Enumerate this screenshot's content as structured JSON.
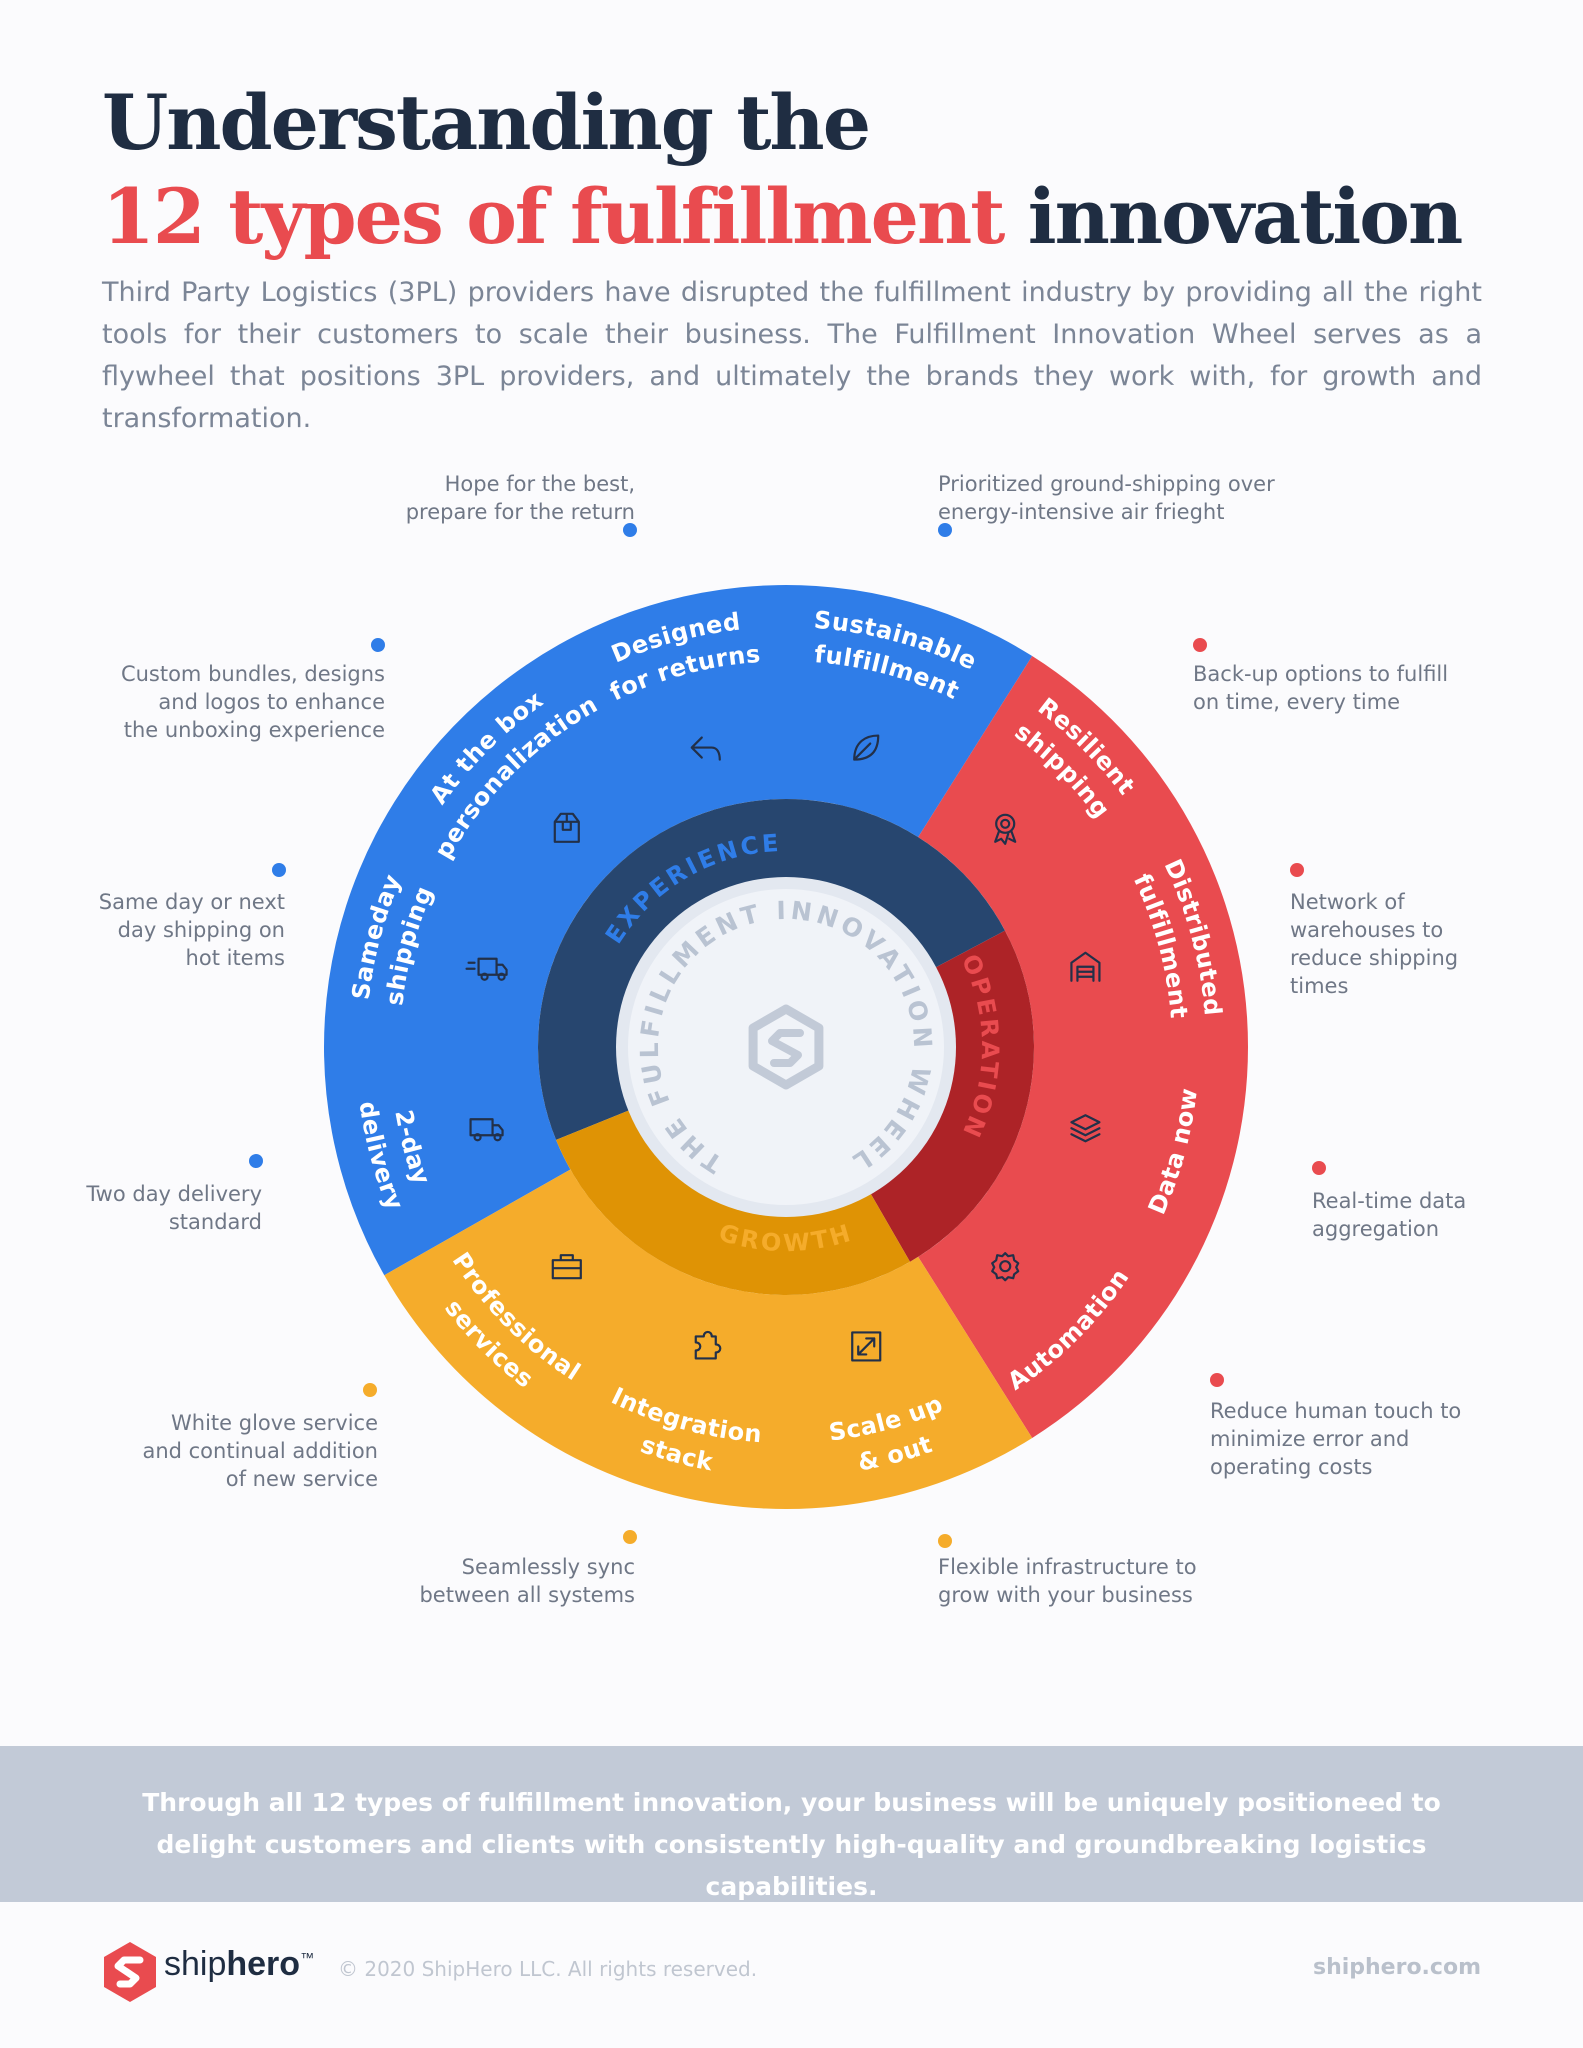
{
  "title": {
    "line1": "Understanding the",
    "line2_highlight": "12 types of fulfillment",
    "line2_rest": "innovation"
  },
  "intro": "Third Party Logistics (3PL) providers have disrupted the fulfillment industry by providing all the right tools for their customers to scale their business. The Fulfillment Innovation Wheel serves as a flywheel that positions 3PL providers, and ultimately the brands they work with, for growth and transformation.",
  "colors": {
    "experience": "#2f7de8",
    "operation": "#e94b4f",
    "growth": "#f5ac2b",
    "experience_inner": "#27466f",
    "operation_inner": "#ad2327",
    "growth_inner": "#df9305",
    "center": "#f0f3f8"
  },
  "wheel": {
    "center_text": "THE FULFILLMENT INNOVATION WHEEL",
    "categories": [
      {
        "key": "experience",
        "label": "EXPERIENCE"
      },
      {
        "key": "operation",
        "label": "OPERATION"
      },
      {
        "key": "growth",
        "label": "GROWTH"
      }
    ],
    "segments": [
      {
        "label": [
          "Sustainable",
          "fulfillment"
        ],
        "category": "experience",
        "icon": "leaf-icon",
        "note": [
          "Prioritized ground-shipping over",
          "energy-intensive air frieght"
        ]
      },
      {
        "label": [
          "Resilient",
          "shipping"
        ],
        "category": "operation",
        "icon": "award-icon",
        "note": [
          "Back-up options to fulfill",
          "on time, every time"
        ]
      },
      {
        "label": [
          "Distributed",
          "fulfillment"
        ],
        "category": "operation",
        "icon": "warehouse-icon",
        "note": [
          "Network of",
          "warehouses to",
          "reduce shipping",
          "times"
        ]
      },
      {
        "label": [
          "Data now"
        ],
        "category": "operation",
        "icon": "layers-icon",
        "note": [
          "Real-time data",
          "aggregation"
        ]
      },
      {
        "label": [
          "Automation"
        ],
        "category": "operation",
        "icon": "gear-icon",
        "note": [
          "Reduce human touch to",
          "minimize error and",
          "operating costs"
        ]
      },
      {
        "label": [
          "Scale up",
          "& out"
        ],
        "category": "growth",
        "icon": "expand-icon",
        "note": [
          "Flexible infrastructure to",
          "grow with your business"
        ]
      },
      {
        "label": [
          "Integration",
          "stack"
        ],
        "category": "growth",
        "icon": "puzzle-icon",
        "note": [
          "Seamlessly sync",
          "between all systems"
        ]
      },
      {
        "label": [
          "Professional",
          "services"
        ],
        "category": "growth",
        "icon": "briefcase-icon",
        "note": [
          "White glove service",
          "and continual addition",
          "of new service"
        ]
      },
      {
        "label": [
          "2-day",
          "delivery"
        ],
        "category": "experience",
        "icon": "truck-icon",
        "note": [
          "Two day delivery",
          "standard"
        ]
      },
      {
        "label": [
          "Sameday",
          "shipping"
        ],
        "category": "experience",
        "icon": "fast-truck-icon",
        "note": [
          "Same day or next",
          "day shipping on",
          "hot items"
        ]
      },
      {
        "label": [
          "At the box",
          "personalization"
        ],
        "category": "experience",
        "icon": "box-icon",
        "note": [
          "Custom bundles, designs",
          "and logos to enhance",
          "the unboxing experience"
        ]
      },
      {
        "label": [
          "Designed",
          "for returns"
        ],
        "category": "experience",
        "icon": "return-arrow-icon",
        "note": [
          "Hope for the best,",
          "prepare for the return"
        ]
      }
    ]
  },
  "banner": "Through all 12 types of fulfillment innovation, your business will be uniquely positioneed to delight customers and clients with consistently high-quality and groundbreaking logistics capabilities.",
  "footer": {
    "brand_light": "ship",
    "brand_bold": "hero",
    "trademark": "™",
    "copyright": "© 2020 ShipHero LLC. All rights reserved.",
    "url": "shiphero.com"
  }
}
